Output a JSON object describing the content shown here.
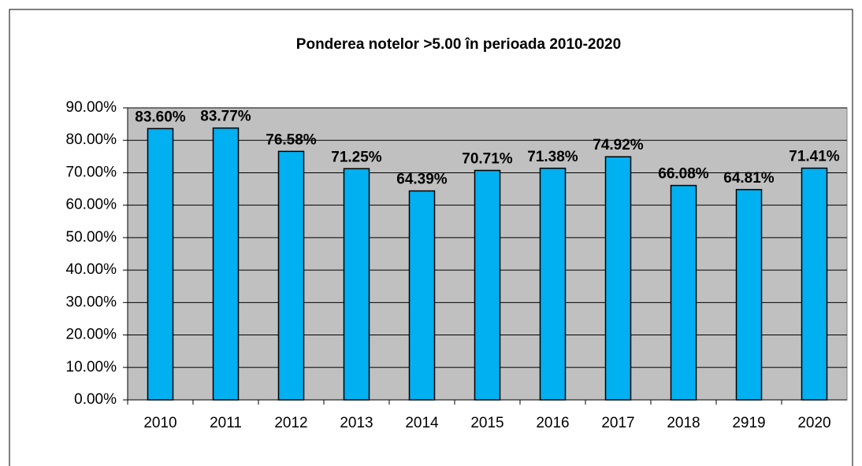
{
  "chart_data": {
    "type": "bar",
    "title": "Ponderea notelor >5.00 în perioada 2010-2020",
    "categories": [
      "2010",
      "2011",
      "2012",
      "2013",
      "2014",
      "2015",
      "2016",
      "2017",
      "2018",
      "2919",
      "2020"
    ],
    "values": [
      83.6,
      83.77,
      76.58,
      71.25,
      64.39,
      70.71,
      71.38,
      74.92,
      66.08,
      64.81,
      71.41
    ],
    "value_labels": [
      "83.60%",
      "83.77%",
      "76.58%",
      "71.25%",
      "64.39%",
      "70.71%",
      "71.38%",
      "74.92%",
      "66.08%",
      "64.81%",
      "71.41%"
    ],
    "color": "#00b0f0",
    "ylim": [
      0,
      90
    ],
    "yticks": [
      {
        "value": 0,
        "label": "0.00%"
      },
      {
        "value": 10,
        "label": "10.00%"
      },
      {
        "value": 20,
        "label": "20.00%"
      },
      {
        "value": 30,
        "label": "30.00%"
      },
      {
        "value": 40,
        "label": "40.00%"
      },
      {
        "value": 50,
        "label": "50.00%"
      },
      {
        "value": 60,
        "label": "60.00%"
      },
      {
        "value": 70,
        "label": "70.00%"
      },
      {
        "value": 80,
        "label": "80.00%"
      },
      {
        "value": 90,
        "label": "90.00%"
      }
    ],
    "grid": true
  }
}
